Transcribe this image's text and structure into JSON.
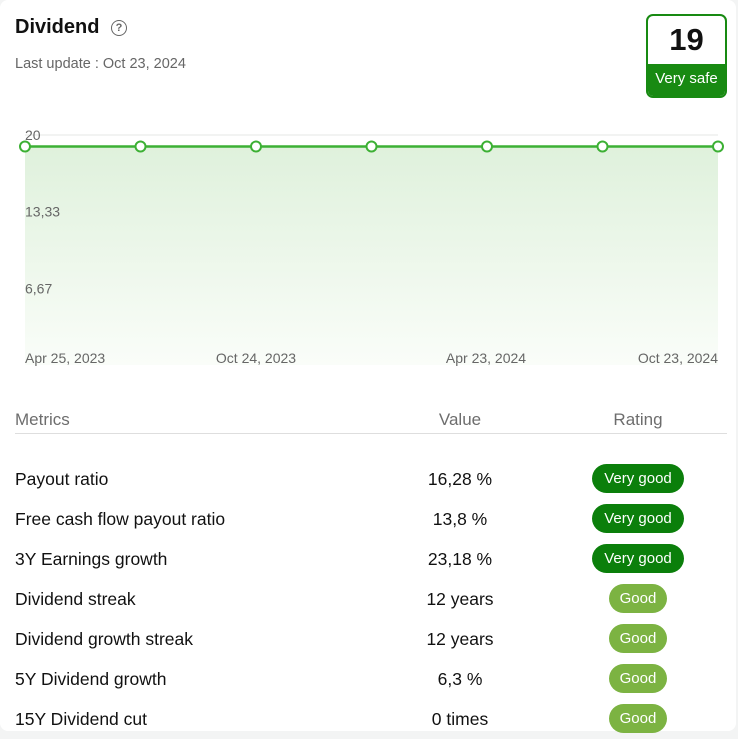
{
  "header": {
    "title": "Dividend",
    "help_icon": "question-circle-icon",
    "last_update": "Last update : Oct 23, 2024"
  },
  "score": {
    "value": "19",
    "label": "Very safe",
    "color": "#188a12"
  },
  "chart_data": {
    "type": "area",
    "y_ticks": [
      "20",
      "13,33",
      "6,67"
    ],
    "ylim": [
      0,
      20
    ],
    "x_labels": [
      "Apr 25, 2023",
      "Oct 24, 2023",
      "Apr 23, 2024",
      "Oct 23, 2024"
    ],
    "x": [
      "Apr 25, 2023",
      "Jul 2023",
      "Oct 24, 2023",
      "Jan 2024",
      "Apr 23, 2024",
      "Jul 2024",
      "Oct 23, 2024"
    ],
    "values": [
      19,
      19,
      19,
      19,
      19,
      19,
      19
    ],
    "line_color": "#3cb034",
    "fill_color": "#e3f4e1",
    "grid": true
  },
  "table": {
    "headers": {
      "metric": "Metrics",
      "value": "Value",
      "rating": "Rating"
    },
    "rows": [
      {
        "metric": "Payout ratio",
        "value": "16,28 %",
        "rating": "Very good",
        "level": "very-good"
      },
      {
        "metric": "Free cash flow payout ratio",
        "value": "13,8 %",
        "rating": "Very good",
        "level": "very-good"
      },
      {
        "metric": "3Y Earnings growth",
        "value": "23,18 %",
        "rating": "Very good",
        "level": "very-good"
      },
      {
        "metric": "Dividend streak",
        "value": "12 years",
        "rating": "Good",
        "level": "good"
      },
      {
        "metric": "Dividend growth streak",
        "value": "12 years",
        "rating": "Good",
        "level": "good"
      },
      {
        "metric": "5Y Dividend growth",
        "value": "6,3 %",
        "rating": "Good",
        "level": "good"
      },
      {
        "metric": "15Y Dividend cut",
        "value": "0 times",
        "rating": "Good",
        "level": "good"
      }
    ]
  }
}
